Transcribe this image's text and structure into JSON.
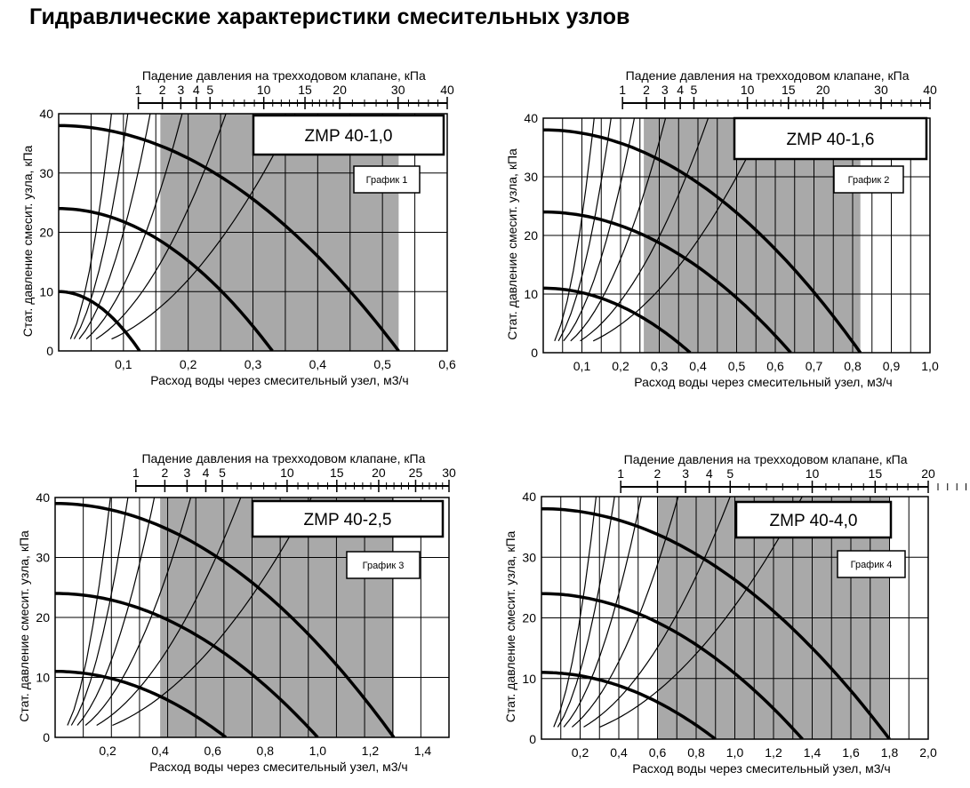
{
  "page_title": "Гидравлические характеристики смесительных узлов",
  "chart_data": [
    {
      "type": "line",
      "model": "ZMP 40-1,0",
      "chart_label": "График 1",
      "xlabel": "Расход воды через смесительный узел, м3/ч",
      "ylabel": "Стат. давление смесит. узла, кПа",
      "top_axis_label": "Падение давления на трехходовом клапане, кПа",
      "xlim": [
        0,
        0.6
      ],
      "ylim": [
        0,
        40
      ],
      "x_ticks": [
        0.1,
        0.2,
        0.3,
        0.4,
        0.5,
        0.6
      ],
      "x_tick_labels": [
        "0,1",
        "0,2",
        "0,3",
        "0,4",
        "0,5",
        "0,6"
      ],
      "y_ticks": [
        0,
        10,
        20,
        30,
        40
      ],
      "y_tick_labels": [
        "0",
        "10",
        "20",
        "30",
        "40"
      ],
      "top_labels": [
        "1",
        "2",
        "3",
        "4",
        "5",
        "10",
        "15",
        "20",
        "30",
        "40"
      ],
      "top_label_values": [
        1,
        2,
        3,
        4,
        5,
        10,
        15,
        20,
        30,
        40
      ],
      "top_minor": [
        6,
        7,
        8,
        9,
        11,
        12,
        13,
        14,
        16,
        17,
        18,
        19,
        22,
        24,
        26,
        28,
        32,
        34,
        36,
        38
      ],
      "kv": 1.0,
      "shaded_x": [
        0.157,
        0.525
      ],
      "pump_curves": [
        {
          "q0": 0.125,
          "p0": 10
        },
        {
          "q0": 0.33,
          "p0": 24
        },
        {
          "q0": 0.525,
          "p0": 38
        }
      ],
      "system_curves": {
        "k": [
          300,
          600,
          1100,
          2000,
          3500,
          6000
        ],
        "y_from": 2
      },
      "legend": "top-right"
    },
    {
      "type": "line",
      "model": "ZMP 40-1,6",
      "chart_label": "График 2",
      "xlabel": "Расход воды через смесительный узел, м3/ч",
      "ylabel": "Стат. давление смесит. узла, кПа",
      "top_axis_label": "Падение давления на трехходовом клапане, кПа",
      "xlim": [
        0,
        1.0
      ],
      "ylim": [
        0,
        40
      ],
      "x_ticks": [
        0.1,
        0.2,
        0.3,
        0.4,
        0.5,
        0.6,
        0.7,
        0.8,
        0.9,
        1.0
      ],
      "x_tick_labels": [
        "0,1",
        "0,2",
        "0,3",
        "0,4",
        "0,5",
        "0,6",
        "0,7",
        "0,8",
        "0,9",
        "1,0"
      ],
      "y_ticks": [
        0,
        10,
        20,
        30,
        40
      ],
      "y_tick_labels": [
        "0",
        "10",
        "20",
        "30",
        "40"
      ],
      "top_labels": [
        "1",
        "2",
        "3",
        "4",
        "5",
        "10",
        "15",
        "20",
        "30",
        "40"
      ],
      "top_label_values": [
        1,
        2,
        3,
        4,
        5,
        10,
        15,
        20,
        30,
        40
      ],
      "top_minor": [
        6,
        7,
        8,
        9,
        11,
        12,
        13,
        14,
        16,
        17,
        18,
        19,
        22,
        24,
        26,
        28,
        32,
        34,
        36,
        38
      ],
      "kv": 1.6,
      "shaded_x": [
        0.26,
        0.82
      ],
      "pump_curves": [
        {
          "q0": 0.38,
          "p0": 11
        },
        {
          "q0": 0.64,
          "p0": 24
        },
        {
          "q0": 0.82,
          "p0": 38
        }
      ],
      "system_curves": {
        "k": [
          120,
          220,
          400,
          720,
          1300,
          2300
        ],
        "y_from": 2
      },
      "legend": "top-right"
    },
    {
      "type": "line",
      "model": "ZMP 40-2,5",
      "chart_label": "График 3",
      "xlabel": "Расход воды через смесительный узел, м3/ч",
      "ylabel": "Стат. давление смесит. узла, кПа",
      "top_axis_label": "Падение давления на трехходовом клапане, кПа",
      "xlim": [
        0,
        1.5
      ],
      "ylim": [
        0,
        40
      ],
      "x_ticks": [
        0.2,
        0.4,
        0.6,
        0.8,
        1.0,
        1.2,
        1.4
      ],
      "x_tick_labels": [
        "0,2",
        "0,4",
        "0,6",
        "0,8",
        "1,0",
        "1,2",
        "1,4"
      ],
      "y_ticks": [
        0,
        10,
        20,
        30,
        40
      ],
      "y_tick_labels": [
        "0",
        "10",
        "20",
        "30",
        "40"
      ],
      "top_labels": [
        "1",
        "2",
        "3",
        "4",
        "5",
        "10",
        "15",
        "20",
        "25",
        "30"
      ],
      "top_label_values": [
        1,
        2,
        3,
        4,
        5,
        10,
        15,
        20,
        25,
        30
      ],
      "top_minor": [
        6,
        7,
        8,
        9,
        11,
        12,
        13,
        14,
        16,
        17,
        18,
        19,
        21,
        22,
        23,
        24,
        26,
        27,
        28,
        29
      ],
      "kv": 2.5,
      "shaded_x": [
        0.4,
        1.29
      ],
      "pump_curves": [
        {
          "q0": 0.65,
          "p0": 11
        },
        {
          "q0": 1.0,
          "p0": 24
        },
        {
          "q0": 1.29,
          "p0": 39
        }
      ],
      "system_curves": {
        "k": [
          42,
          80,
          150,
          280,
          520,
          900
        ],
        "y_from": 2
      },
      "legend": "top-right"
    },
    {
      "type": "line",
      "model": "ZMP 40-4,0",
      "chart_label": "График 4",
      "xlabel": "Расход воды через смесительный узел, м3/ч",
      "ylabel": "Стат. давление смесит. узла, кПа",
      "top_axis_label": "Падение давления на трехходовом клапане, кПа",
      "xlim": [
        0,
        2.0
      ],
      "ylim": [
        0,
        40
      ],
      "x_ticks": [
        0.2,
        0.4,
        0.6,
        0.8,
        1.0,
        1.2,
        1.4,
        1.6,
        1.8,
        2.0
      ],
      "x_tick_labels": [
        "0,2",
        "0,4",
        "0,6",
        "0,8",
        "1,0",
        "1,2",
        "1,4",
        "1,6",
        "1,8",
        "2,0"
      ],
      "y_ticks": [
        0,
        10,
        20,
        30,
        40
      ],
      "y_tick_labels": [
        "0",
        "10",
        "20",
        "30",
        "40"
      ],
      "top_labels": [
        "1",
        "2",
        "3",
        "4",
        "5",
        "10",
        "15",
        "20"
      ],
      "top_label_values": [
        1,
        2,
        3,
        4,
        5,
        10,
        15,
        20
      ],
      "top_minor": [
        6,
        7,
        8,
        9,
        11,
        12,
        13,
        14,
        16,
        17,
        18,
        19,
        21,
        22,
        23,
        24,
        25
      ],
      "kv": 4.0,
      "shaded_x": [
        0.6,
        1.8
      ],
      "pump_curves": [
        {
          "q0": 0.9,
          "p0": 11
        },
        {
          "q0": 1.35,
          "p0": 24
        },
        {
          "q0": 1.8,
          "p0": 38
        }
      ],
      "system_curves": {
        "k": [
          22,
          42,
          80,
          150,
          280,
          500
        ],
        "y_from": 2
      },
      "legend": "top-right"
    }
  ]
}
